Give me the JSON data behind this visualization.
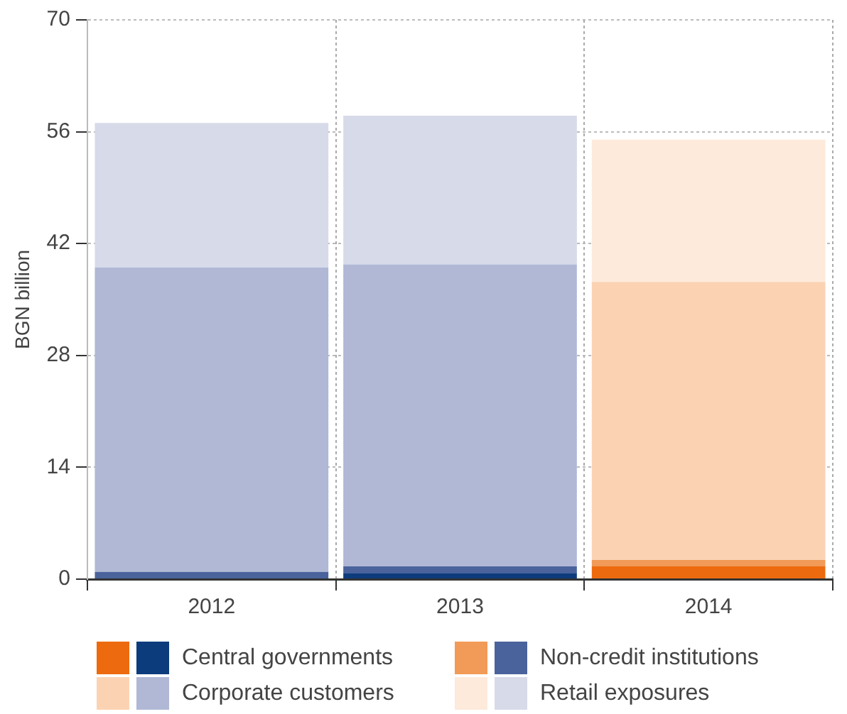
{
  "chart_data": {
    "type": "bar",
    "ylabel": "BGN billion",
    "categories": [
      "2012",
      "2013",
      "2014"
    ],
    "stacked": true,
    "ylim": [
      0,
      70
    ],
    "yticks": [
      0,
      14,
      28,
      42,
      56,
      70
    ],
    "grid": true,
    "legend": "bottom",
    "series": [
      {
        "name": "Central governments",
        "colors": [
          "#0d3c7c",
          "#0d3c7c",
          "#ee6a0e"
        ],
        "values": [
          0,
          0.7,
          1.6
        ]
      },
      {
        "name": "Non-credit institutions",
        "colors": [
          "#4a639c",
          "#4a639c",
          "#f29a57"
        ],
        "values": [
          0.9,
          0.9,
          0.8
        ]
      },
      {
        "name": "Corporate customers",
        "colors": [
          "#b0b8d6",
          "#b0b8d6",
          "#fbd3b3"
        ],
        "values": [
          38.1,
          37.8,
          34.8
        ]
      },
      {
        "name": "Retail exposures",
        "colors": [
          "#d7dae9",
          "#d7dae9",
          "#fdeadb"
        ],
        "values": [
          18.1,
          18.6,
          17.8
        ]
      }
    ]
  }
}
